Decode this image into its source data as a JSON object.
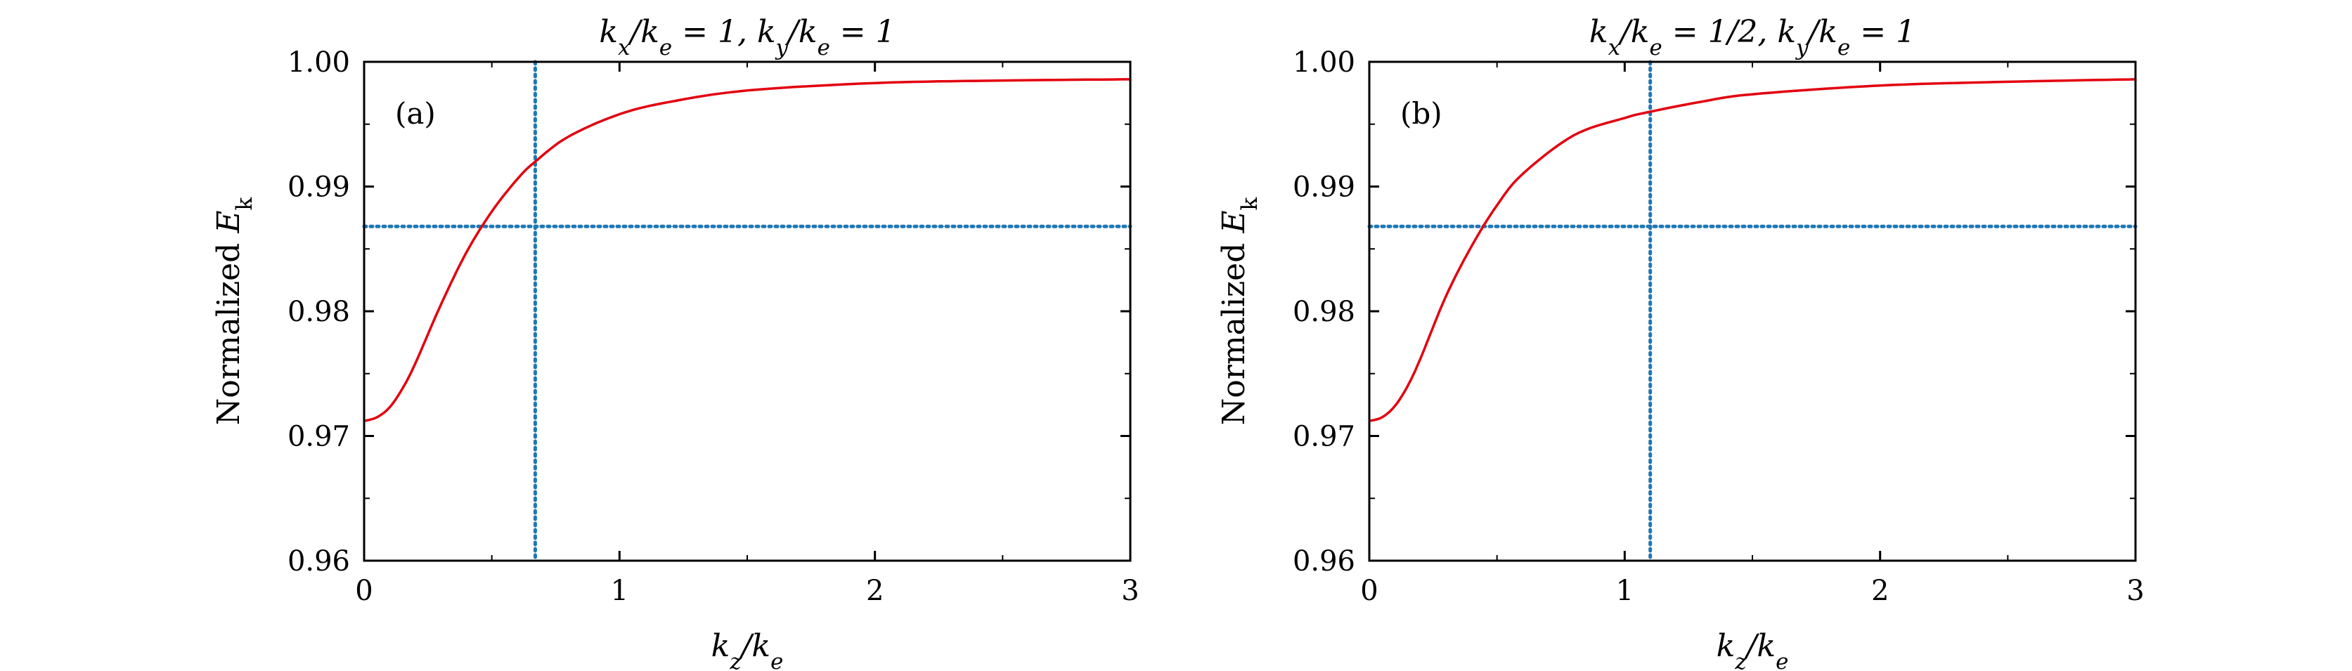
{
  "chart_data": [
    {
      "type": "line",
      "panel_label": "(a)",
      "title": "kx/ke = 1, ky/ke = 1",
      "xlabel": "kz/ke",
      "ylabel": "Normalized Ek",
      "xlim": [
        0,
        3
      ],
      "ylim": [
        0.96,
        1.0
      ],
      "xticks": [
        0,
        1,
        2,
        3
      ],
      "yticks": [
        0.96,
        0.97,
        0.98,
        0.99,
        1.0
      ],
      "xtick_labels": [
        "0",
        "1",
        "2",
        "3"
      ],
      "ytick_labels": [
        "0.96",
        "0.97",
        "0.98",
        "0.99",
        "1.00"
      ],
      "grid": false,
      "series": [
        {
          "color": "#e3000f",
          "style": "solid",
          "x": [
            0,
            0.05,
            0.1,
            0.15,
            0.2,
            0.3,
            0.4,
            0.5,
            0.6,
            0.67,
            0.8,
            1.0,
            1.2,
            1.5,
            2.0,
            2.5,
            3.0
          ],
          "y": [
            0.9712,
            0.9715,
            0.9723,
            0.9738,
            0.9758,
            0.9805,
            0.9847,
            0.988,
            0.9906,
            0.992,
            0.994,
            0.9958,
            0.9968,
            0.9977,
            0.9983,
            0.9985,
            0.9986
          ]
        }
      ],
      "reference_lines": [
        {
          "orientation": "horizontal",
          "value": 0.9868,
          "color": "#1f77b4",
          "style": "dotted"
        },
        {
          "orientation": "vertical",
          "value": 0.67,
          "color": "#1f77b4",
          "style": "dotted"
        }
      ]
    },
    {
      "type": "line",
      "panel_label": "(b)",
      "title": "kx/ke = 1/2, ky/ke = 1",
      "xlabel": "kz/ke",
      "ylabel": "Normalized Ek",
      "xlim": [
        0,
        3
      ],
      "ylim": [
        0.96,
        1.0
      ],
      "xticks": [
        0,
        1,
        2,
        3
      ],
      "yticks": [
        0.96,
        0.97,
        0.98,
        0.99,
        1.0
      ],
      "xtick_labels": [
        "0",
        "1",
        "2",
        "3"
      ],
      "ytick_labels": [
        "0.96",
        "0.97",
        "0.98",
        "0.99",
        "1.00"
      ],
      "grid": false,
      "series": [
        {
          "color": "#e3000f",
          "style": "solid",
          "x": [
            0,
            0.05,
            0.1,
            0.15,
            0.2,
            0.3,
            0.4,
            0.5,
            0.6,
            0.8,
            1.0,
            1.1,
            1.3,
            1.5,
            2.0,
            2.5,
            3.0
          ],
          "y": [
            0.9712,
            0.9715,
            0.9724,
            0.974,
            0.9762,
            0.9812,
            0.9852,
            0.9885,
            0.991,
            0.9941,
            0.9955,
            0.996,
            0.9968,
            0.9974,
            0.9981,
            0.9984,
            0.9986
          ]
        }
      ],
      "reference_lines": [
        {
          "orientation": "horizontal",
          "value": 0.9868,
          "color": "#1f77b4",
          "style": "dotted"
        },
        {
          "orientation": "vertical",
          "value": 1.1,
          "color": "#1f77b4",
          "style": "dotted"
        }
      ]
    }
  ]
}
